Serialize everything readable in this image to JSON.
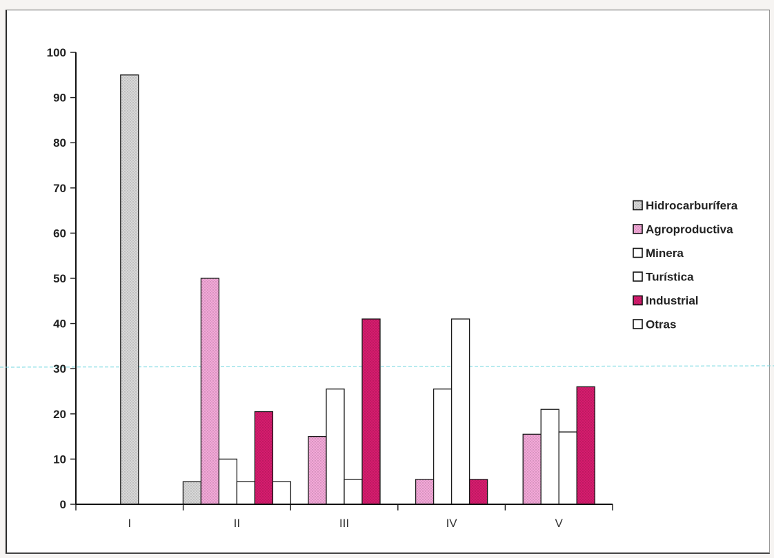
{
  "chart_data": {
    "type": "bar",
    "title": "",
    "xlabel": "",
    "ylabel": "",
    "ylim": [
      0,
      100
    ],
    "yticks": [
      0,
      10,
      20,
      30,
      40,
      50,
      60,
      70,
      80,
      90,
      100
    ],
    "categories": [
      "I",
      "II",
      "III",
      "IV",
      "V"
    ],
    "legend_position": "right",
    "grid": false,
    "series": [
      {
        "name": "Hidrocarburífera",
        "color": "#d8d8d8",
        "pattern": "dots",
        "values": [
          95,
          5,
          null,
          null,
          null
        ]
      },
      {
        "name": "Agroproductiva",
        "color": "#f3a8d8",
        "pattern": "dots",
        "values": [
          null,
          50,
          15,
          5.5,
          15.5
        ]
      },
      {
        "name": "Minera",
        "color": "#ffffff",
        "pattern": "none",
        "values": [
          null,
          10,
          25.5,
          25.5,
          21
        ]
      },
      {
        "name": "Turística",
        "color": "#ffffff",
        "pattern": "none",
        "values": [
          null,
          5,
          5.5,
          41,
          16
        ]
      },
      {
        "name": "Industrial",
        "color": "#d61c6e",
        "pattern": "dots",
        "values": [
          null,
          20.5,
          41,
          5.5,
          26
        ]
      },
      {
        "name": "Otras",
        "color": "#ffffff",
        "pattern": "none",
        "values": [
          null,
          5,
          null,
          null,
          null
        ]
      }
    ]
  }
}
